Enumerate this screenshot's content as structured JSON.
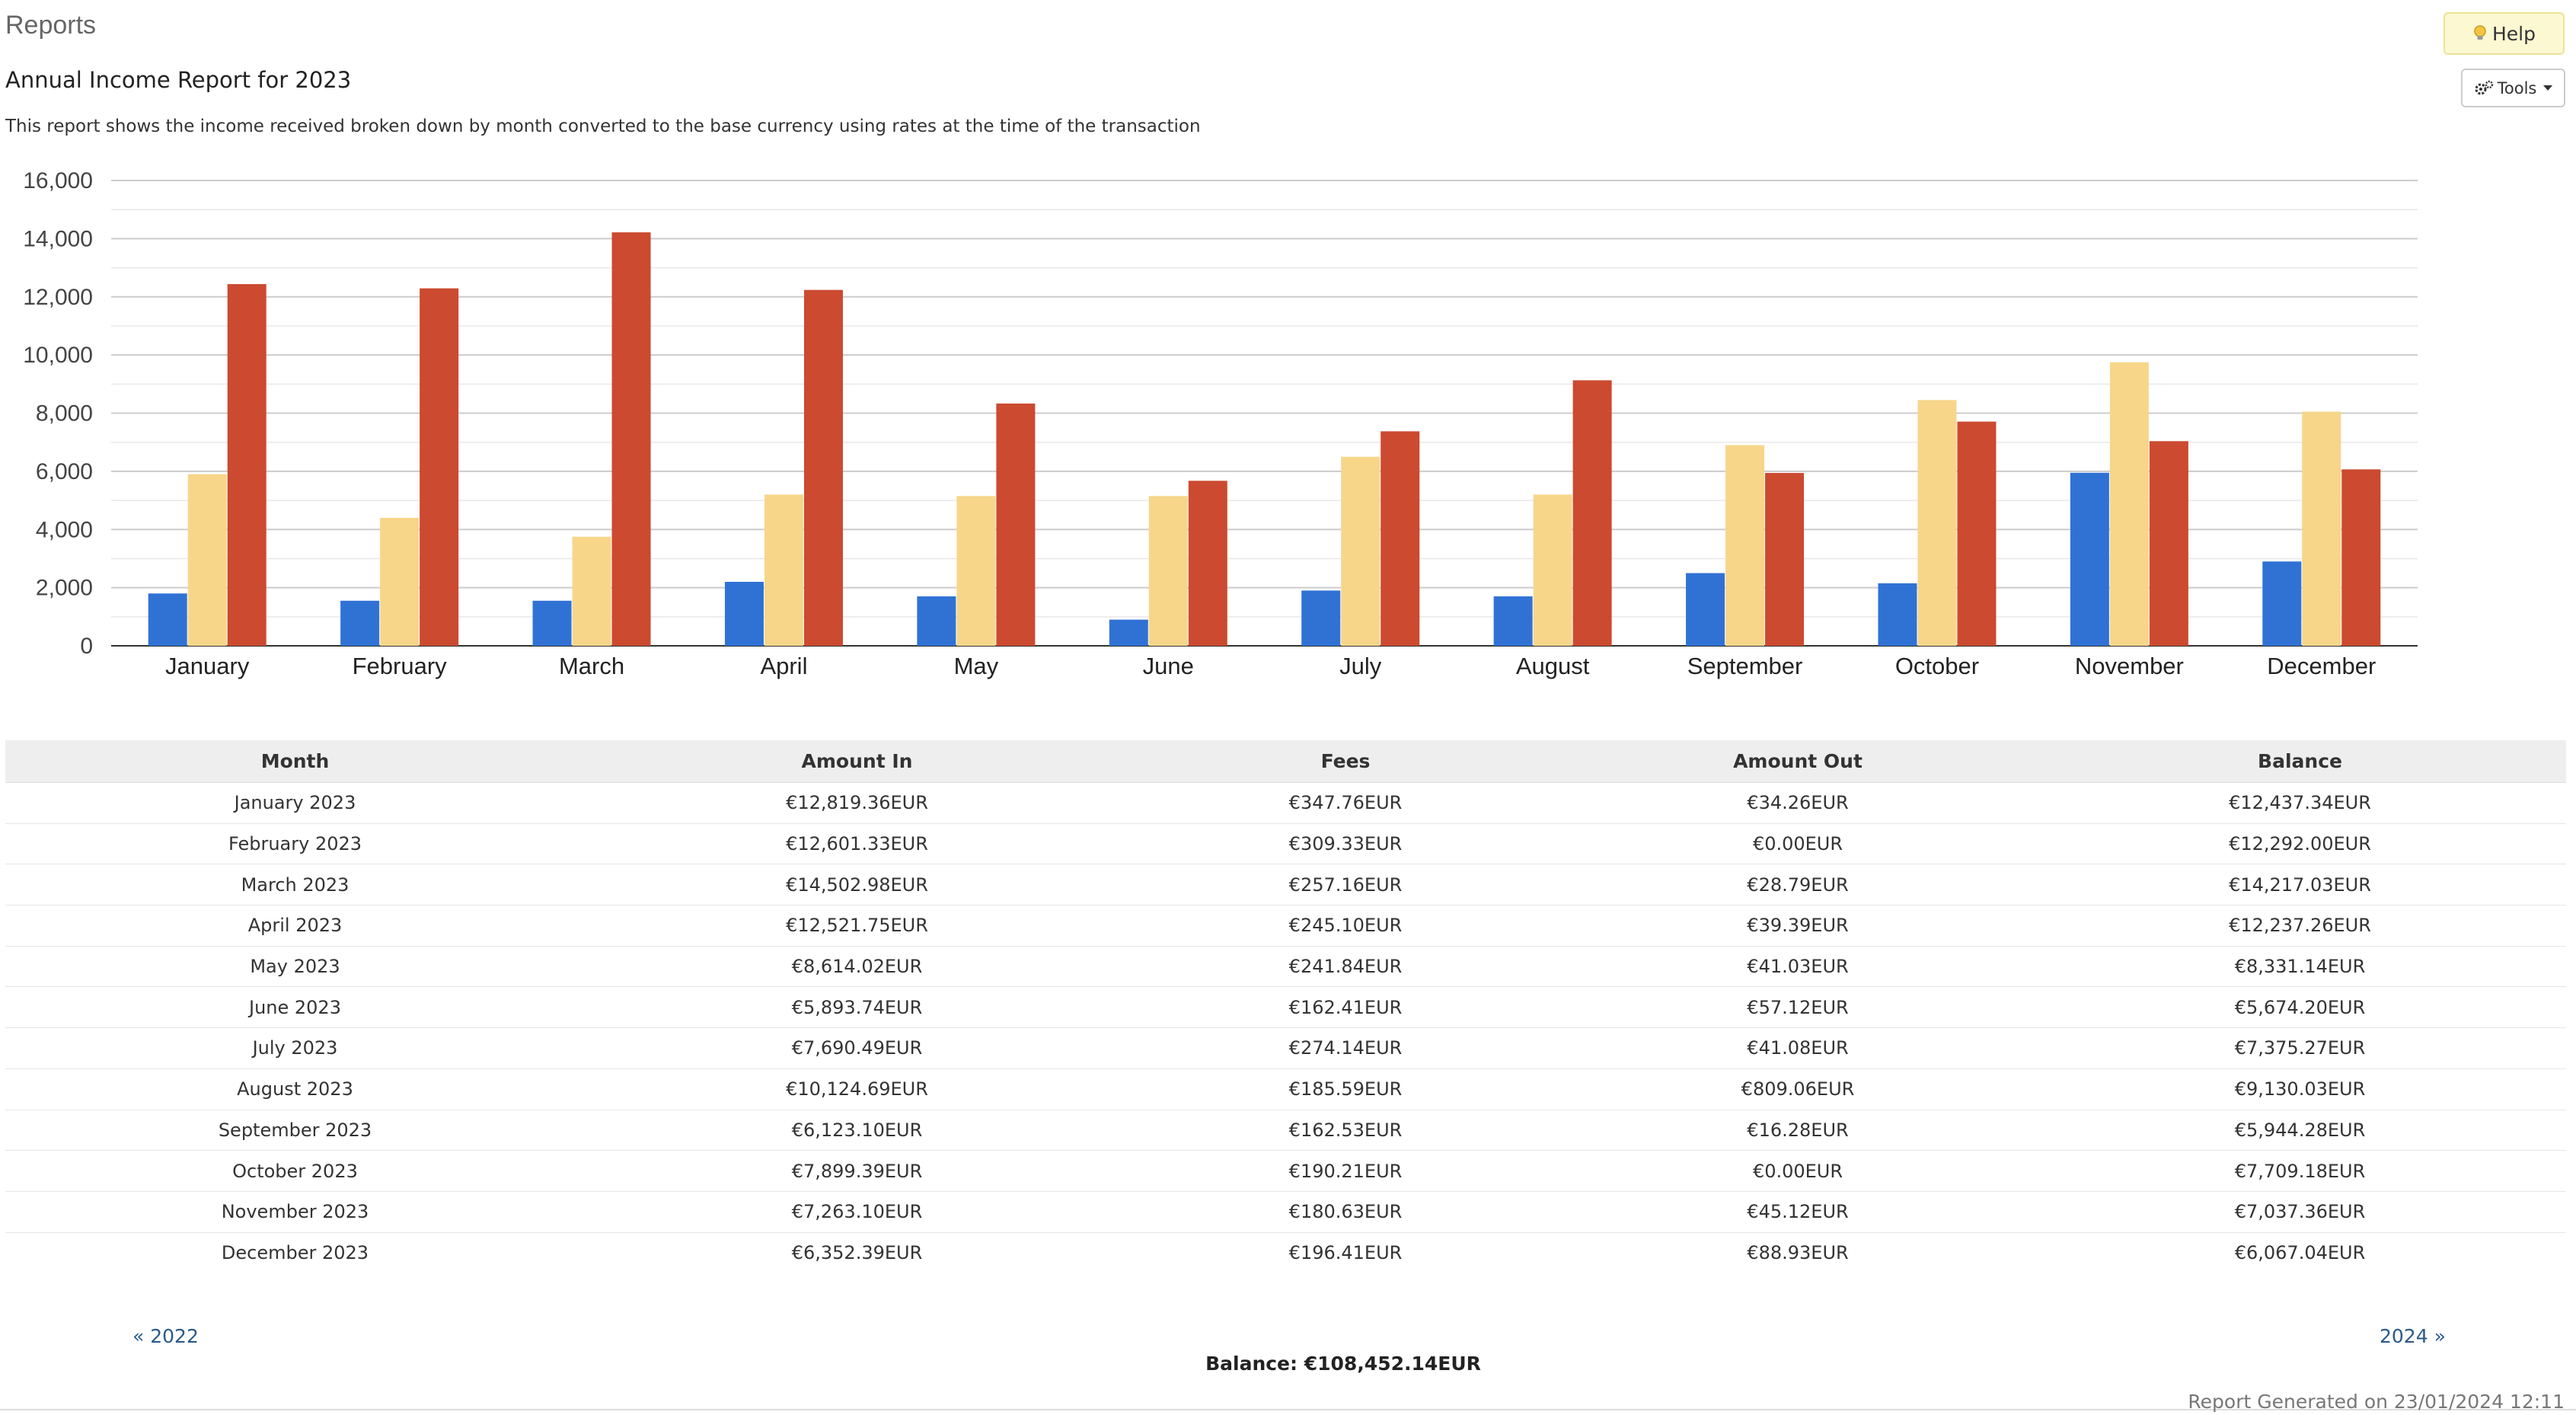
{
  "header": {
    "page_title": "Reports",
    "report_title": "Annual Income Report for 2023",
    "description": "This report shows the income received broken down by month converted to the base currency using rates at the time of the transaction"
  },
  "toolbar": {
    "help_label": "Help",
    "help_icon": "lightbulb-icon",
    "tools_label": "Tools",
    "tools_icon": "gears-icon"
  },
  "chart_data": {
    "type": "bar",
    "title": "",
    "xlabel": "",
    "ylabel": "",
    "ylim": [
      0,
      16000
    ],
    "yticks": [
      "0",
      "2,000",
      "4,000",
      "6,000",
      "8,000",
      "10,000",
      "12,000",
      "14,000",
      "16,000"
    ],
    "grid": true,
    "legend": "none",
    "categories": [
      "January",
      "February",
      "March",
      "April",
      "May",
      "June",
      "July",
      "August",
      "September",
      "October",
      "November",
      "December"
    ],
    "series": [
      {
        "color": "#3072d4",
        "values": [
          1800,
          1550,
          1550,
          2200,
          1700,
          900,
          1900,
          1700,
          2500,
          2150,
          5950,
          2900
        ]
      },
      {
        "color": "#f7d68a",
        "values": [
          5900,
          4400,
          3750,
          5200,
          5150,
          5150,
          6500,
          5200,
          6900,
          8450,
          9750,
          8050
        ]
      },
      {
        "color": "#cb4a30",
        "values": [
          12437.34,
          12292.0,
          14217.03,
          12237.26,
          8331.14,
          5674.2,
          7375.27,
          9130.03,
          5944.28,
          7709.18,
          7037.36,
          6067.04
        ]
      }
    ]
  },
  "table": {
    "columns": [
      "Month",
      "Amount In",
      "Fees",
      "Amount Out",
      "Balance"
    ],
    "rows": [
      [
        "January 2023",
        "€12,819.36EUR",
        "€347.76EUR",
        "€34.26EUR",
        "€12,437.34EUR"
      ],
      [
        "February 2023",
        "€12,601.33EUR",
        "€309.33EUR",
        "€0.00EUR",
        "€12,292.00EUR"
      ],
      [
        "March 2023",
        "€14,502.98EUR",
        "€257.16EUR",
        "€28.79EUR",
        "€14,217.03EUR"
      ],
      [
        "April 2023",
        "€12,521.75EUR",
        "€245.10EUR",
        "€39.39EUR",
        "€12,237.26EUR"
      ],
      [
        "May 2023",
        "€8,614.02EUR",
        "€241.84EUR",
        "€41.03EUR",
        "€8,331.14EUR"
      ],
      [
        "June 2023",
        "€5,893.74EUR",
        "€162.41EUR",
        "€57.12EUR",
        "€5,674.20EUR"
      ],
      [
        "July 2023",
        "€7,690.49EUR",
        "€274.14EUR",
        "€41.08EUR",
        "€7,375.27EUR"
      ],
      [
        "August 2023",
        "€10,124.69EUR",
        "€185.59EUR",
        "€809.06EUR",
        "€9,130.03EUR"
      ],
      [
        "September 2023",
        "€6,123.10EUR",
        "€162.53EUR",
        "€16.28EUR",
        "€5,944.28EUR"
      ],
      [
        "October 2023",
        "€7,899.39EUR",
        "€190.21EUR",
        "€0.00EUR",
        "€7,709.18EUR"
      ],
      [
        "November 2023",
        "€7,263.10EUR",
        "€180.63EUR",
        "€45.12EUR",
        "€7,037.36EUR"
      ],
      [
        "December 2023",
        "€6,352.39EUR",
        "€196.41EUR",
        "€88.93EUR",
        "€6,067.04EUR"
      ]
    ]
  },
  "footer": {
    "prev_year_label": "« 2022",
    "next_year_label": "2024 »",
    "balance_label": "Balance: €108,452.14EUR",
    "generated_label": "Report Generated on 23/01/2024 12:11"
  }
}
